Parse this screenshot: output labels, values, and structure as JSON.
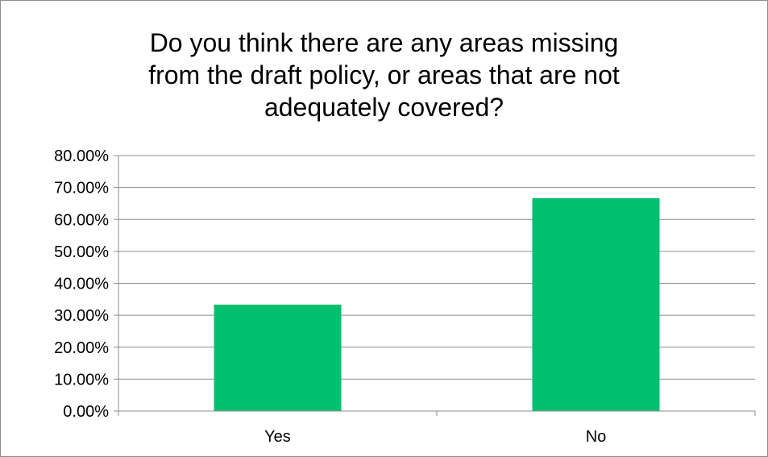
{
  "chart_data": {
    "type": "bar",
    "title_lines": [
      "Do you think there are any areas missing",
      "from the draft policy, or areas that are not",
      "adequately covered?"
    ],
    "categories": [
      "Yes",
      "No"
    ],
    "values": [
      0.3333,
      0.6667
    ],
    "ylim": [
      0,
      0.8
    ],
    "yticks": [
      0,
      0.1,
      0.2,
      0.3,
      0.4,
      0.5,
      0.6,
      0.7,
      0.8
    ],
    "ytick_labels": [
      "0.00%",
      "10.00%",
      "20.00%",
      "30.00%",
      "40.00%",
      "50.00%",
      "60.00%",
      "70.00%",
      "80.00%"
    ],
    "grid": true,
    "legend": "none",
    "bar_color": "#00bf6f"
  }
}
